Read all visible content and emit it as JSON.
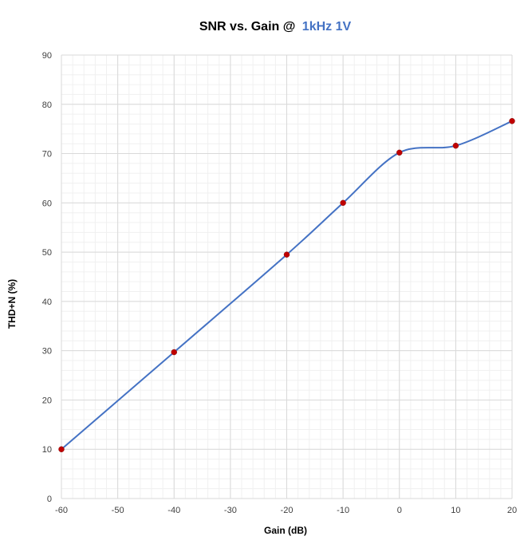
{
  "chart_data": {
    "type": "line",
    "title": "SNR vs. Gain @",
    "title_highlight": "1kHz 1V",
    "xlabel": "Gain (dB)",
    "ylabel": "THD+N  (%)",
    "xlim": [
      -60,
      20
    ],
    "ylim": [
      0,
      90
    ],
    "x_ticks": [
      -60,
      -50,
      -40,
      -30,
      -20,
      -10,
      0,
      10,
      20
    ],
    "y_ticks": [
      0,
      10,
      20,
      30,
      40,
      50,
      60,
      70,
      80,
      90
    ],
    "x_tick_labels": [
      "-60",
      "-50",
      "-40",
      "-30",
      "-20",
      "-10",
      "0",
      "10",
      "20"
    ],
    "y_tick_labels": [
      "0",
      "10",
      "20",
      "30",
      "40",
      "50",
      "60",
      "70",
      "80",
      "90"
    ],
    "grid": true,
    "minor_grid": true,
    "smooth": true,
    "series": [
      {
        "x": [
          -60,
          -40,
          -20,
          -10,
          0,
          10,
          20
        ],
        "y": [
          10.0,
          29.7,
          49.5,
          60.0,
          70.2,
          71.6,
          76.6
        ]
      }
    ],
    "colors": {
      "line": "#4472C4",
      "marker": "#C00000",
      "title_highlight": "#4472C4",
      "major_grid": "#d9d9d9",
      "minor_grid": "#f0f0f0"
    }
  }
}
